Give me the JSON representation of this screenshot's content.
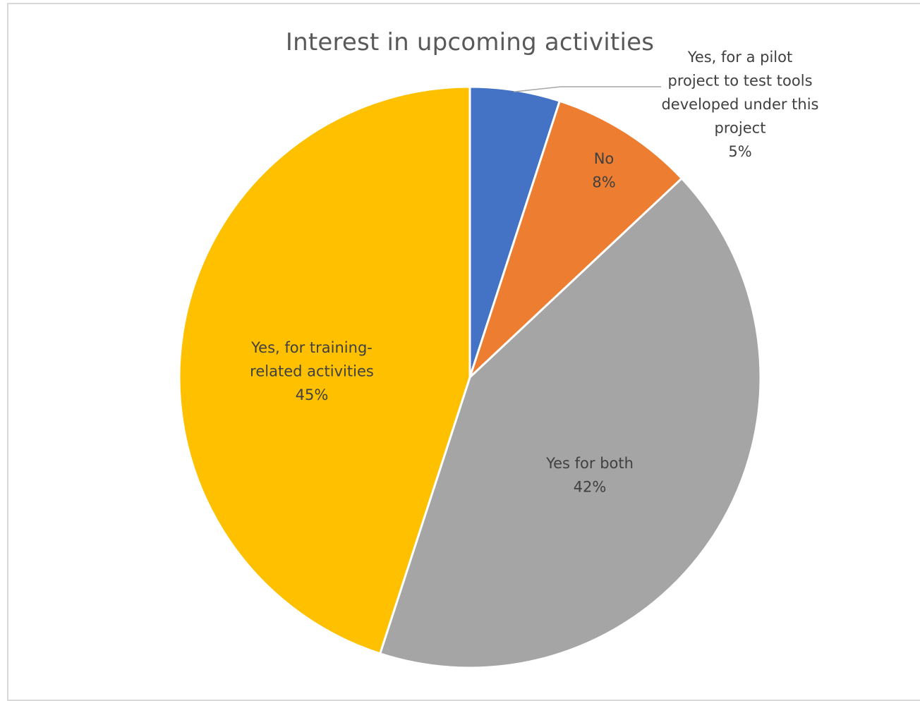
{
  "chart_data": {
    "type": "pie",
    "title": "Interest in upcoming activities",
    "start_angle_deg": 0,
    "direction": "clockwise",
    "slices": [
      {
        "label_lines": [
          "Yes, for a pilot",
          "project to test tools",
          "developed under this",
          "project"
        ],
        "percent_label": "5%",
        "value": 5,
        "color": "#4472C4"
      },
      {
        "label_lines": [
          "No"
        ],
        "percent_label": "8%",
        "value": 8,
        "color": "#ED7D31"
      },
      {
        "label_lines": [
          "Yes for both"
        ],
        "percent_label": "42%",
        "value": 42,
        "color": "#A5A5A5"
      },
      {
        "label_lines": [
          "Yes, for training-",
          "related activities"
        ],
        "percent_label": "45%",
        "value": 45,
        "color": "#FFC000"
      }
    ]
  }
}
